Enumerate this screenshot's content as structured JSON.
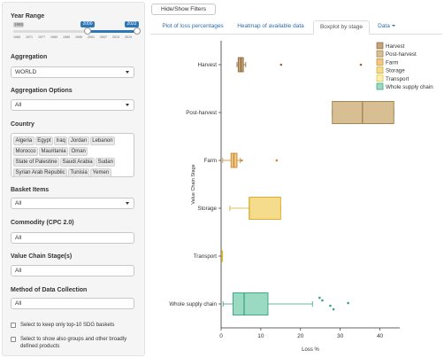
{
  "sidebar": {
    "year_range": {
      "label": "Year Range",
      "min_label": "1965",
      "from": "2000",
      "to": "2022",
      "from_pct": 0.6,
      "to_pct": 1.0,
      "ticks": [
        "1965",
        "1971",
        "1977",
        "1983",
        "1989",
        "1995",
        "2001",
        "2007",
        "2013",
        "2019"
      ]
    },
    "aggregation": {
      "label": "Aggregation",
      "value": "WORLD"
    },
    "aggregation_options": {
      "label": "Aggregation Options",
      "value": "All"
    },
    "country": {
      "label": "Country",
      "chips": [
        "Algeria",
        "Egypt",
        "Iraq",
        "Jordan",
        "Lebanon",
        "Morocco",
        "Mauritania",
        "Oman",
        "State of Palestine",
        "Saudi Arabia",
        "Sudan",
        "Syrian Arab Republic",
        "Tunisia",
        "Yemen"
      ]
    },
    "basket_items": {
      "label": "Basket Items",
      "value": "All"
    },
    "commodity": {
      "label": "Commodity (CPC 2.0)",
      "value": "All"
    },
    "value_chain": {
      "label": "Value Chain Stage(s)",
      "value": "All"
    },
    "method": {
      "label": "Method of Data Collection",
      "value": "All"
    },
    "checkbox_top10": "Select to keep only top-10 SDG baskets",
    "checkbox_groups": "Select to show also groups and other broadly defined products"
  },
  "main": {
    "toggle_button": "Hide/Show Filters",
    "tabs": [
      {
        "label": "Plot of loss percentages",
        "active": false
      },
      {
        "label": "Heatmap of available data",
        "active": false
      },
      {
        "label": "Boxplot by stage",
        "active": true
      },
      {
        "label": "Data",
        "active": false,
        "dropdown": true
      }
    ]
  },
  "chart_data": {
    "type": "boxplot",
    "orientation": "horizontal",
    "xlabel": "Loss %",
    "ylabel": "Value Chain Stage",
    "xlim": [
      0,
      45
    ],
    "xticks": [
      0,
      10,
      20,
      30,
      40
    ],
    "categories": [
      "Harvest",
      "Post-harvest",
      "Farm",
      "Storage",
      "Transport",
      "Whole supply chain"
    ],
    "legend": {
      "position": "top-right",
      "entries": [
        "Harvest",
        "Post-harvest",
        "Farm",
        "Storage",
        "Transport",
        "Whole supply chain"
      ]
    },
    "boxes": [
      {
        "name": "Harvest",
        "min": 4.0,
        "q1": 4.3,
        "median": 5.0,
        "q3": 5.6,
        "max": 6.2,
        "outliers": [
          15.1,
          35.2
        ],
        "fill": "#c4a478",
        "stroke": "#8a6a3b"
      },
      {
        "name": "Post-harvest",
        "min": 28.0,
        "q1": 28.0,
        "median": 35.6,
        "q3": 43.5,
        "max": 43.5,
        "outliers": [],
        "fill": "#d8bf93",
        "stroke": "#9c7d4c"
      },
      {
        "name": "Farm",
        "min": 0.4,
        "q1": 2.5,
        "median": 3.2,
        "q3": 4.0,
        "max": 4.8,
        "outliers": [
          5.2,
          14.0
        ],
        "fill": "#efc887",
        "stroke": "#c8882e"
      },
      {
        "name": "Storage",
        "min": 2.2,
        "q1": 7.1,
        "median": 7.1,
        "q3": 15.0,
        "max": 15.0,
        "outliers": [],
        "fill": "#f5dc8c",
        "stroke": "#d6a820"
      },
      {
        "name": "Transport",
        "min": 0.2,
        "q1": 0.2,
        "median": 0.2,
        "q3": 0.3,
        "max": 0.3,
        "outliers": [],
        "fill": "#fff0b0",
        "stroke": "#d9bd3a"
      },
      {
        "name": "Whole supply chain",
        "min": 0.5,
        "q1": 3.0,
        "median": 5.8,
        "q3": 11.8,
        "max": 23.0,
        "outliers": [
          24.8,
          25.5,
          27.5,
          28.3,
          32.0
        ],
        "fill": "#9ad9c2",
        "stroke": "#37a37c"
      }
    ]
  }
}
